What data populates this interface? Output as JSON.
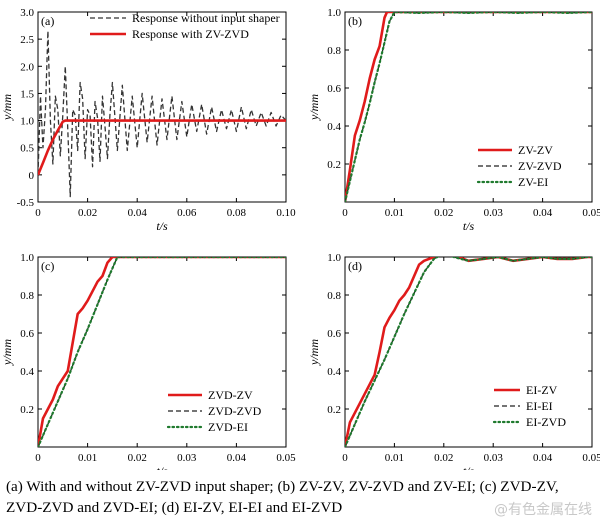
{
  "chart_data": [
    {
      "type": "line",
      "panel_label": "(a)",
      "xlabel": "t/s",
      "ylabel": "y/mm",
      "xlim": [
        0,
        0.1
      ],
      "ylim": [
        -0.5,
        3.0
      ],
      "xticks": [
        0,
        0.02,
        0.04,
        0.06,
        0.08,
        0.1
      ],
      "xtick_labels": [
        "0",
        "0.02",
        "0.04",
        "0.06",
        "0.08",
        "0.10"
      ],
      "yticks": [
        -0.5,
        0,
        0.5,
        1.0,
        1.5,
        2.0,
        2.5,
        3.0
      ],
      "ytick_labels": [
        "-0.5",
        "0",
        "0.5",
        "1.0",
        "1.5",
        "2.0",
        "2.5",
        "3.0"
      ],
      "legend_position": "top-right",
      "series": [
        {
          "name": "Response without input shaper",
          "color": "#333333",
          "style": "dashed",
          "x": [
            0,
            0.001,
            0.002,
            0.003,
            0.004,
            0.005,
            0.006,
            0.007,
            0.008,
            0.009,
            0.01,
            0.011,
            0.012,
            0.013,
            0.014,
            0.015,
            0.016,
            0.017,
            0.018,
            0.019,
            0.02,
            0.021,
            0.022,
            0.023,
            0.024,
            0.025,
            0.026,
            0.027,
            0.028,
            0.029,
            0.03,
            0.032,
            0.034,
            0.036,
            0.038,
            0.04,
            0.042,
            0.044,
            0.046,
            0.048,
            0.05,
            0.052,
            0.054,
            0.056,
            0.058,
            0.06,
            0.062,
            0.064,
            0.066,
            0.068,
            0.07,
            0.072,
            0.074,
            0.076,
            0.078,
            0.08,
            0.082,
            0.084,
            0.086,
            0.088,
            0.09,
            0.092,
            0.094,
            0.096,
            0.098,
            0.1
          ],
          "y": [
            0,
            1.45,
            0.5,
            1.2,
            2.65,
            1.0,
            0.2,
            1.45,
            1.2,
            0.35,
            1.1,
            2.0,
            0.85,
            -0.4,
            1.2,
            1.1,
            0.45,
            1.7,
            1.4,
            0.3,
            1.2,
            1.1,
            0.15,
            1.35,
            1.05,
            0.25,
            1.45,
            0.9,
            0.3,
            1.1,
            1.7,
            0.45,
            1.65,
            0.45,
            1.45,
            0.5,
            1.5,
            0.6,
            1.45,
            0.55,
            1.4,
            0.65,
            1.45,
            0.65,
            1.35,
            0.7,
            1.3,
            0.8,
            1.3,
            0.75,
            1.25,
            0.8,
            1.2,
            0.85,
            1.2,
            0.8,
            1.25,
            0.85,
            1.2,
            0.9,
            1.15,
            0.9,
            1.15,
            0.9,
            1.1,
            1.0
          ]
        },
        {
          "name": "Response with ZV-ZVD",
          "color": "#e01b1b",
          "style": "solid",
          "x": [
            0,
            0.002,
            0.004,
            0.006,
            0.008,
            0.01,
            0.011,
            0.013,
            0.1
          ],
          "y": [
            0,
            0.22,
            0.45,
            0.65,
            0.82,
            0.98,
            1.0,
            1.0,
            1.0
          ]
        }
      ]
    },
    {
      "type": "line",
      "panel_label": "(b)",
      "xlabel": "t/s",
      "ylabel": "y/mm",
      "xlim": [
        0,
        0.05
      ],
      "ylim": [
        0,
        1.0
      ],
      "xticks": [
        0,
        0.01,
        0.02,
        0.03,
        0.04,
        0.05
      ],
      "xtick_labels": [
        "0",
        "0.01",
        "0.02",
        "0.03",
        "0.04",
        "0.05"
      ],
      "yticks": [
        0.2,
        0.4,
        0.6,
        0.8,
        1.0
      ],
      "ytick_labels": [
        "0.2",
        "0.4",
        "0.6",
        "0.8",
        "1.0"
      ],
      "legend_position": "bottom-right",
      "series": [
        {
          "name": "ZV-ZV",
          "color": "#e01b1b",
          "style": "solid",
          "x": [
            0,
            0.001,
            0.002,
            0.003,
            0.004,
            0.005,
            0.006,
            0.007,
            0.008,
            0.0085,
            0.009,
            0.05
          ],
          "y": [
            0,
            0.17,
            0.35,
            0.43,
            0.53,
            0.65,
            0.75,
            0.82,
            0.97,
            1.0,
            1.0,
            1.0
          ]
        },
        {
          "name": "ZV-ZVD",
          "color": "#222222",
          "style": "dashed",
          "x": [
            0,
            0.001,
            0.002,
            0.003,
            0.004,
            0.005,
            0.006,
            0.007,
            0.008,
            0.009,
            0.01,
            0.015,
            0.02,
            0.025,
            0.03,
            0.035,
            0.04,
            0.045,
            0.05
          ],
          "y": [
            0,
            0.11,
            0.22,
            0.33,
            0.42,
            0.52,
            0.63,
            0.73,
            0.84,
            0.95,
            1.0,
            0.995,
            1.0,
            0.995,
            1.0,
            0.995,
            1.0,
            0.995,
            1.0
          ]
        },
        {
          "name": "ZV-EI",
          "color": "#1f7a2e",
          "style": "dotted",
          "x": [
            0,
            0.001,
            0.002,
            0.003,
            0.004,
            0.005,
            0.006,
            0.007,
            0.008,
            0.009,
            0.01,
            0.015,
            0.02,
            0.025,
            0.03,
            0.035,
            0.04,
            0.045,
            0.05
          ],
          "y": [
            0,
            0.11,
            0.22,
            0.33,
            0.42,
            0.52,
            0.63,
            0.73,
            0.84,
            0.95,
            1.0,
            0.995,
            1.0,
            0.995,
            1.0,
            0.995,
            1.0,
            0.995,
            1.0
          ]
        }
      ]
    },
    {
      "type": "line",
      "panel_label": "(c)",
      "xlabel": "t/s",
      "ylabel": "y/mm",
      "xlim": [
        0,
        0.05
      ],
      "ylim": [
        0,
        1.0
      ],
      "xticks": [
        0,
        0.01,
        0.02,
        0.03,
        0.04,
        0.05
      ],
      "xtick_labels": [
        "0",
        "0.01",
        "0.02",
        "0.03",
        "0.04",
        "0.05"
      ],
      "yticks": [
        0.2,
        0.4,
        0.6,
        0.8,
        1.0
      ],
      "ytick_labels": [
        "0.2",
        "0.4",
        "0.6",
        "0.8",
        "1.0"
      ],
      "legend_position": "bottom-right",
      "series": [
        {
          "name": "ZVD-ZV",
          "color": "#e01b1b",
          "style": "solid",
          "x": [
            0,
            0.001,
            0.002,
            0.003,
            0.004,
            0.005,
            0.006,
            0.007,
            0.008,
            0.009,
            0.01,
            0.011,
            0.012,
            0.013,
            0.014,
            0.015,
            0.02,
            0.05
          ],
          "y": [
            0,
            0.15,
            0.2,
            0.25,
            0.32,
            0.36,
            0.4,
            0.55,
            0.7,
            0.73,
            0.77,
            0.82,
            0.87,
            0.9,
            0.97,
            1.0,
            1.0,
            1.0
          ]
        },
        {
          "name": "ZVD-ZVD",
          "color": "#222222",
          "style": "dashed",
          "x": [
            0,
            0.002,
            0.004,
            0.006,
            0.008,
            0.01,
            0.012,
            0.014,
            0.016,
            0.02,
            0.05
          ],
          "y": [
            0,
            0.12,
            0.24,
            0.36,
            0.5,
            0.62,
            0.75,
            0.88,
            1.0,
            1.0,
            1.0
          ]
        },
        {
          "name": "ZVD-EI",
          "color": "#1f7a2e",
          "style": "dotted",
          "x": [
            0,
            0.002,
            0.004,
            0.006,
            0.008,
            0.01,
            0.012,
            0.014,
            0.016,
            0.02,
            0.05
          ],
          "y": [
            0,
            0.12,
            0.24,
            0.36,
            0.5,
            0.62,
            0.75,
            0.88,
            1.0,
            1.0,
            1.0
          ]
        }
      ]
    },
    {
      "type": "line",
      "panel_label": "(d)",
      "xlabel": "t/s",
      "ylabel": "y/mm",
      "xlim": [
        0,
        0.05
      ],
      "ylim": [
        0,
        1.0
      ],
      "xticks": [
        0,
        0.01,
        0.02,
        0.03,
        0.04,
        0.05
      ],
      "xtick_labels": [
        "0",
        "0.01",
        "0.02",
        "0.03",
        "0.04",
        "0.05"
      ],
      "yticks": [
        0.2,
        0.4,
        0.6,
        0.8,
        1.0
      ],
      "ytick_labels": [
        "0.2",
        "0.4",
        "0.6",
        "0.8",
        "1.0"
      ],
      "legend_position": "bottom-right",
      "series": [
        {
          "name": "EI-ZV",
          "color": "#e01b1b",
          "style": "solid",
          "x": [
            0,
            0.001,
            0.002,
            0.003,
            0.004,
            0.005,
            0.006,
            0.007,
            0.008,
            0.009,
            0.01,
            0.011,
            0.012,
            0.013,
            0.014,
            0.015,
            0.016,
            0.018,
            0.02,
            0.022,
            0.025,
            0.028,
            0.031,
            0.034,
            0.037,
            0.04,
            0.043,
            0.046,
            0.049,
            0.05
          ],
          "y": [
            0,
            0.13,
            0.18,
            0.23,
            0.28,
            0.33,
            0.38,
            0.5,
            0.63,
            0.68,
            0.72,
            0.77,
            0.8,
            0.84,
            0.9,
            0.96,
            0.98,
            1.0,
            1.02,
            1.01,
            0.98,
            0.99,
            1.0,
            0.98,
            0.99,
            1.0,
            0.99,
            0.99,
            1.0,
            1.0
          ]
        },
        {
          "name": "EI-EI",
          "color": "#222222",
          "style": "dashed",
          "x": [
            0,
            0.002,
            0.004,
            0.006,
            0.008,
            0.01,
            0.012,
            0.014,
            0.016,
            0.018,
            0.02,
            0.022,
            0.025,
            0.028,
            0.031,
            0.034,
            0.037,
            0.04,
            0.043,
            0.046,
            0.049,
            0.05
          ],
          "y": [
            0,
            0.12,
            0.24,
            0.35,
            0.46,
            0.58,
            0.7,
            0.81,
            0.92,
            0.99,
            1.02,
            1.0,
            0.98,
            0.99,
            1.0,
            0.98,
            0.99,
            1.0,
            0.99,
            0.99,
            1.0,
            1.0
          ]
        },
        {
          "name": "EI-ZVD",
          "color": "#1f7a2e",
          "style": "dotted",
          "x": [
            0,
            0.002,
            0.004,
            0.006,
            0.008,
            0.01,
            0.012,
            0.014,
            0.016,
            0.018,
            0.02,
            0.022,
            0.025,
            0.028,
            0.031,
            0.034,
            0.037,
            0.04,
            0.043,
            0.046,
            0.049,
            0.05
          ],
          "y": [
            0,
            0.12,
            0.24,
            0.35,
            0.46,
            0.58,
            0.7,
            0.81,
            0.92,
            0.99,
            1.02,
            1.0,
            0.98,
            0.99,
            1.0,
            0.98,
            0.99,
            1.0,
            0.99,
            0.99,
            1.0,
            1.0
          ]
        }
      ]
    }
  ],
  "caption": "(a) With and without ZV-ZVD input shaper; (b) ZV-ZV, ZV-ZVD and ZV-EI; (c) ZVD-ZV, ZVD-ZVD and ZVD-EI; (d) EI-ZV, EI-EI and EI-ZVD",
  "watermark": "@有色金属在线"
}
